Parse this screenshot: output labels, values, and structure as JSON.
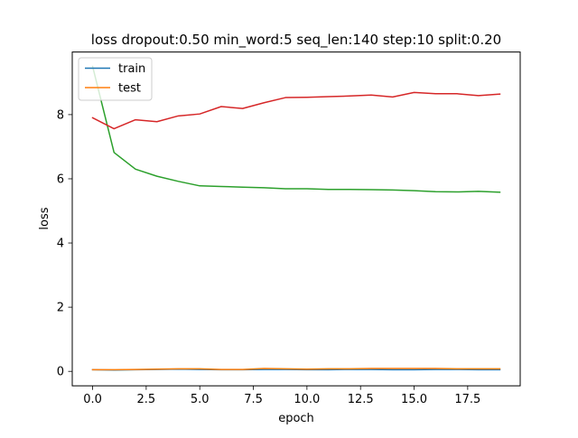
{
  "chart_data": {
    "type": "line",
    "title": "loss dropout:0.50 min_word:5 seq_len:140 step:10 split:0.20",
    "xlabel": "epoch",
    "ylabel": "loss",
    "xlim": [
      -0.95,
      19.95
    ],
    "ylim": [
      -0.45,
      9.95
    ],
    "xticks": [
      0,
      2.5,
      5,
      7.5,
      10,
      12.5,
      15,
      17.5
    ],
    "xtick_labels": [
      "0.0",
      "2.5",
      "5.0",
      "7.5",
      "10.0",
      "12.5",
      "15.0",
      "17.5"
    ],
    "yticks": [
      0,
      2,
      4,
      6,
      8
    ],
    "ytick_labels": [
      "0",
      "2",
      "4",
      "6",
      "8"
    ],
    "grid": false,
    "legend": {
      "placement": "top-left",
      "entries": [
        "train",
        "test"
      ]
    },
    "x": [
      0,
      1,
      2,
      3,
      4,
      5,
      6,
      7,
      8,
      9,
      10,
      11,
      12,
      13,
      14,
      15,
      16,
      17,
      18,
      19
    ],
    "series": [
      {
        "name": "train",
        "color": "#1f77b4",
        "values": [
          0.05,
          0.04,
          0.05,
          0.06,
          0.07,
          0.06,
          0.05,
          0.05,
          0.06,
          0.06,
          0.05,
          0.05,
          0.06,
          0.06,
          0.05,
          0.05,
          0.06,
          0.06,
          0.05,
          0.05
        ]
      },
      {
        "name": "test",
        "color": "#ff7f0e",
        "values": [
          0.05,
          0.05,
          0.06,
          0.07,
          0.08,
          0.08,
          0.06,
          0.06,
          0.09,
          0.08,
          0.07,
          0.08,
          0.08,
          0.09,
          0.09,
          0.09,
          0.09,
          0.08,
          0.08,
          0.08
        ]
      },
      {
        "color": "#2ca02c",
        "values": [
          9.5,
          6.82,
          6.3,
          6.08,
          5.92,
          5.78,
          5.76,
          5.74,
          5.72,
          5.69,
          5.69,
          5.67,
          5.67,
          5.66,
          5.65,
          5.63,
          5.6,
          5.59,
          5.61,
          5.58
        ]
      },
      {
        "color": "#d62728",
        "values": [
          7.9,
          7.56,
          7.84,
          7.78,
          7.96,
          8.02,
          8.25,
          8.19,
          8.37,
          8.53,
          8.54,
          8.56,
          8.58,
          8.61,
          8.55,
          8.69,
          8.65,
          8.65,
          8.59,
          8.64
        ]
      }
    ]
  }
}
